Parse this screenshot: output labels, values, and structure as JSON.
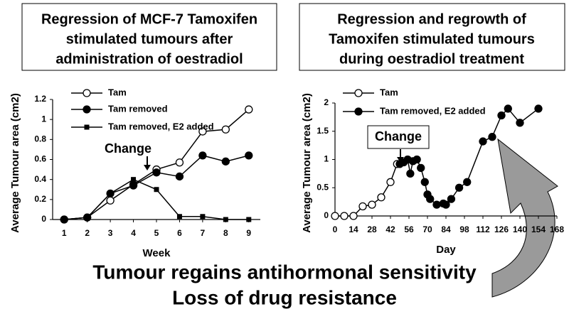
{
  "chart_data": [
    {
      "type": "line",
      "title": [
        "Regression of MCF-7 Tamoxifen",
        "stimulated tumours after",
        "administration of oestradiol"
      ],
      "x_label": "Week",
      "y_label": "Average Tumour area (cm2)",
      "x": [
        1,
        2,
        3,
        4,
        5,
        6,
        7,
        8,
        9
      ],
      "xlim": [
        0.5,
        9.5
      ],
      "xticks": [
        1,
        2,
        3,
        4,
        5,
        6,
        7,
        8,
        9
      ],
      "ylim": [
        0,
        1.2
      ],
      "yticks": [
        0,
        0.2,
        0.4,
        0.6,
        0.8,
        1,
        1.2
      ],
      "series": [
        {
          "name": "Tam",
          "color": "#000000",
          "marker": "open-circle",
          "values": [
            0,
            0.02,
            0.19,
            0.35,
            0.5,
            0.57,
            0.88,
            0.9,
            1.1
          ]
        },
        {
          "name": "Tam removed",
          "color": "#000000",
          "marker": "circle",
          "values": [
            0,
            0.02,
            0.26,
            0.34,
            0.47,
            0.43,
            0.64,
            0.58,
            0.64
          ]
        },
        {
          "name": "Tam removed, E2 added",
          "color": "#000000",
          "marker": "square",
          "values": [
            0,
            0.02,
            0.26,
            0.4,
            0.3,
            0.03,
            0.03,
            0,
            0
          ]
        }
      ],
      "annotations": [
        "Change"
      ]
    },
    {
      "type": "line",
      "title": [
        "Regression and regrowth of",
        "Tamoxifen stimulated tumours",
        "during oestradiol treatment"
      ],
      "x_label": "Day",
      "y_label": "Average Tumour area (cm2)",
      "xlim": [
        0,
        168
      ],
      "xticks": [
        0,
        14,
        28,
        42,
        56,
        70,
        84,
        98,
        112,
        126,
        140,
        154,
        168
      ],
      "ylim": [
        0,
        2
      ],
      "yticks": [
        0,
        0.5,
        1,
        1.5,
        2
      ],
      "series": [
        {
          "name": "Tam",
          "color": "#000000",
          "marker": "open-circle",
          "x": [
            0,
            7,
            14,
            21,
            28,
            35,
            42,
            47
          ],
          "values": [
            0,
            0,
            0,
            0.17,
            0.2,
            0.33,
            0.6,
            0.92
          ]
        },
        {
          "name": "Tam removed, E2 added",
          "color": "#000000",
          "marker": "circle",
          "x": [
            49,
            52,
            55,
            57,
            59,
            62,
            65,
            68,
            70,
            72,
            77,
            82,
            84,
            88,
            94,
            100,
            112,
            119,
            126,
            131,
            140,
            154
          ],
          "values": [
            0.92,
            0.95,
            1.0,
            0.75,
            0.97,
            1.0,
            0.85,
            0.6,
            0.38,
            0.3,
            0.2,
            0.22,
            0.2,
            0.3,
            0.5,
            0.6,
            1.32,
            1.4,
            1.78,
            1.9,
            1.65,
            1.9
          ]
        }
      ],
      "annotations": [
        "Change"
      ]
    }
  ],
  "footer": [
    "Tumour regains antihormonal sensitivity",
    "Loss of drug resistance"
  ]
}
